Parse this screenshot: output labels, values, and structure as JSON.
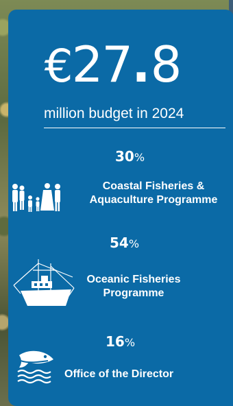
{
  "headline": {
    "currency": "€",
    "integer": "27",
    "decimal_point": ".",
    "decimal": "8",
    "subtitle": "million budget in 2024"
  },
  "programmes": [
    {
      "percent": "30",
      "percent_symbol": "%",
      "label_line1": "Coastal Fisheries &",
      "label_line2": "Aquaculture Programme",
      "icon": "people-family-icon"
    },
    {
      "percent": "54",
      "percent_symbol": "%",
      "label_line1": "Oceanic Fisheries",
      "label_line2": "Programme",
      "icon": "fishing-vessel-icon"
    },
    {
      "percent": "16",
      "percent_symbol": "%",
      "label_line1": "Office of the Director",
      "label_line2": "",
      "icon": "fish-waves-logo-icon"
    }
  ],
  "colors": {
    "panel": "#0b6aa6",
    "text": "#ffffff"
  }
}
